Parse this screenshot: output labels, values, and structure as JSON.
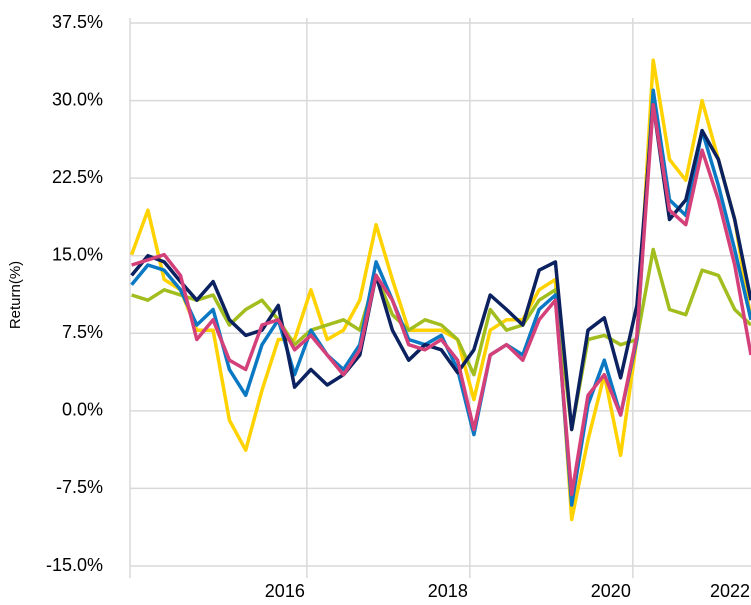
{
  "chart_data": {
    "type": "line",
    "y_label": "Return(%)",
    "x": [
      2013.85,
      2014.05,
      2014.25,
      2014.45,
      2014.65,
      2014.85,
      2015.05,
      2015.25,
      2015.45,
      2015.65,
      2015.85,
      2016.05,
      2016.25,
      2016.45,
      2016.65,
      2016.85,
      2017.05,
      2017.25,
      2017.45,
      2017.65,
      2017.85,
      2018.05,
      2018.25,
      2018.45,
      2018.65,
      2018.85,
      2019.05,
      2019.25,
      2019.45,
      2019.65,
      2019.85,
      2020.05,
      2020.25,
      2020.45,
      2020.65,
      2020.85,
      2021.05,
      2021.25,
      2021.45
    ],
    "series": [
      {
        "color": "#ffd200",
        "values": [
          15.1,
          19.4,
          12.7,
          11.7,
          7.8,
          7.8,
          -0.9,
          -3.8,
          2.0,
          6.9,
          6.9,
          11.7,
          6.9,
          7.8,
          10.7,
          18.0,
          12.7,
          7.8,
          7.8,
          7.8,
          6.9,
          1.1,
          7.8,
          8.8,
          8.8,
          11.7,
          12.7,
          -10.5,
          -2.8,
          3.5,
          -4.3,
          6.9,
          33.9,
          24.3,
          22.3,
          30.0,
          24.3,
          18.5,
          8.8
        ]
      },
      {
        "color": "#a2bd1e",
        "values": [
          11.2,
          10.7,
          11.7,
          11.2,
          10.7,
          11.2,
          8.3,
          9.8,
          10.7,
          8.8,
          6.4,
          7.8,
          8.3,
          8.8,
          7.8,
          13.1,
          9.3,
          7.8,
          8.8,
          8.3,
          6.9,
          3.5,
          9.8,
          7.8,
          8.3,
          10.7,
          11.7,
          -1.8,
          6.9,
          7.3,
          6.4,
          6.9,
          15.6,
          9.8,
          9.3,
          13.6,
          13.1,
          9.8,
          8.3
        ]
      },
      {
        "color": "#0a78c2",
        "values": [
          12.2,
          14.1,
          13.6,
          11.7,
          8.3,
          9.8,
          4.0,
          1.5,
          6.4,
          8.8,
          3.5,
          7.8,
          5.4,
          4.0,
          6.4,
          14.4,
          10.7,
          6.9,
          6.4,
          7.3,
          4.0,
          -2.3,
          5.4,
          6.4,
          5.4,
          9.8,
          11.2,
          -9.1,
          0.6,
          4.9,
          -0.4,
          6.9,
          31.0,
          20.4,
          18.9,
          27.1,
          21.8,
          15.6,
          8.8
        ]
      },
      {
        "color": "#0b2160",
        "values": [
          13.1,
          15.0,
          14.4,
          12.5,
          10.7,
          12.5,
          8.8,
          7.3,
          7.8,
          10.2,
          2.3,
          4.0,
          2.5,
          3.5,
          5.4,
          13.1,
          7.8,
          4.9,
          6.4,
          5.9,
          3.7,
          5.9,
          11.2,
          9.8,
          8.3,
          13.6,
          14.4,
          -1.8,
          7.8,
          9.0,
          3.2,
          10.2,
          29.6,
          18.5,
          20.4,
          27.1,
          24.3,
          18.5,
          10.7
        ]
      },
      {
        "color": "#d4417a",
        "values": [
          14.1,
          14.6,
          15.1,
          13.1,
          6.9,
          8.8,
          4.9,
          4.0,
          8.3,
          8.8,
          5.9,
          7.3,
          5.4,
          3.5,
          5.9,
          13.1,
          10.7,
          6.4,
          5.9,
          6.9,
          4.9,
          -1.8,
          5.4,
          6.4,
          4.9,
          8.8,
          10.7,
          -8.1,
          1.5,
          3.5,
          -0.4,
          7.3,
          29.6,
          19.4,
          18.0,
          25.2,
          20.4,
          14.1,
          5.4
        ]
      }
    ],
    "xlim": [
      2013.83,
      2021.45
    ],
    "xticks": [
      2016,
      2018,
      2020,
      2022
    ],
    "ylim": [
      -15,
      37.5
    ],
    "yticks": [
      {
        "value": -15,
        "label": "-15.0%"
      },
      {
        "value": -7.5,
        "label": "-7.5%"
      },
      {
        "value": 0,
        "label": "0.0%"
      },
      {
        "value": 7.5,
        "label": "7.5%"
      },
      {
        "value": 15,
        "label": "15.0%"
      },
      {
        "value": 22.5,
        "label": "22.5%"
      },
      {
        "value": 30,
        "label": "30.0%"
      },
      {
        "value": 37.5,
        "label": "37.5%"
      }
    ],
    "grid": true
  }
}
